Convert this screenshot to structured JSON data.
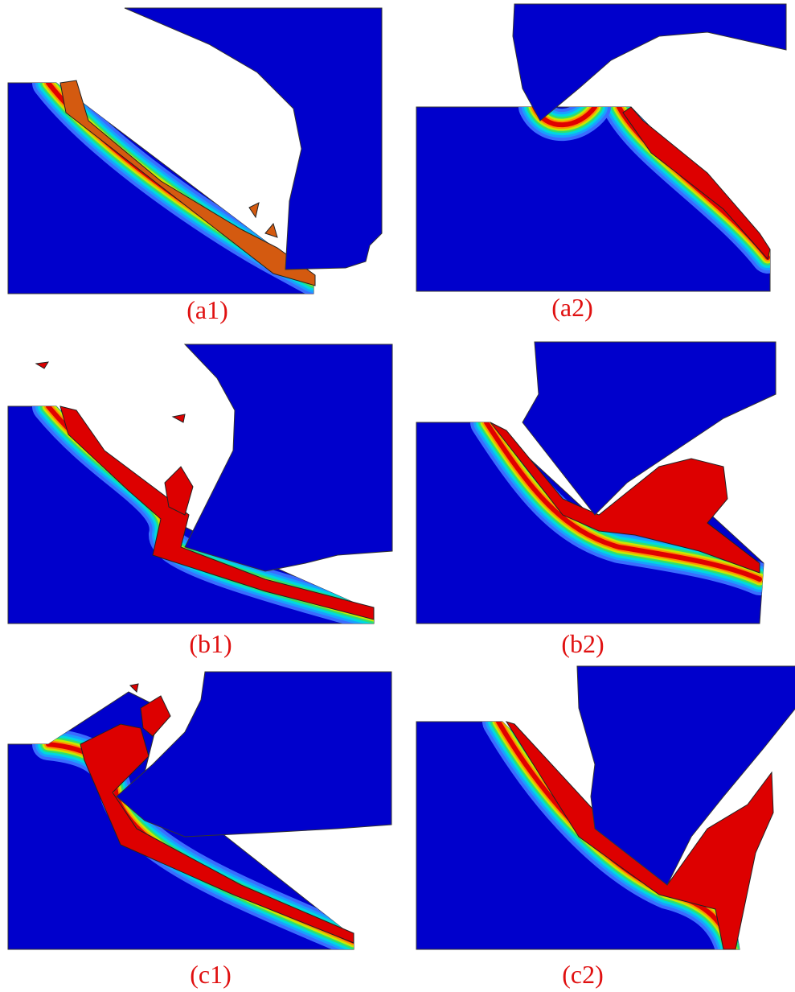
{
  "panels": [
    {
      "label": "(a1)"
    },
    {
      "label": "(a2)"
    },
    {
      "label": "(b1)"
    },
    {
      "label": "(b2)"
    },
    {
      "label": "(c1)"
    },
    {
      "label": "(c2)"
    }
  ]
}
